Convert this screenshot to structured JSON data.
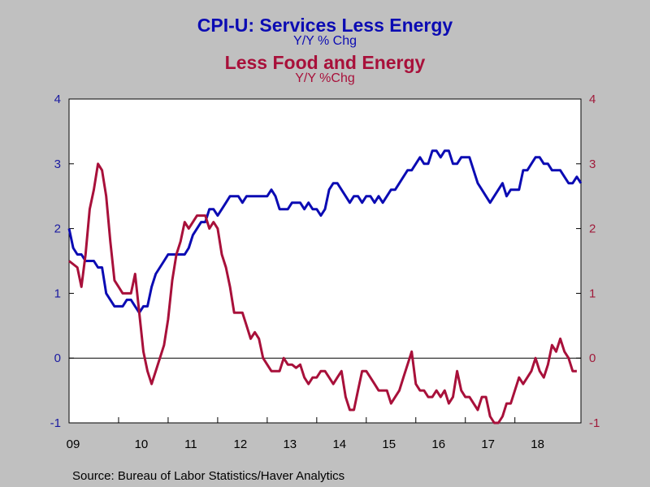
{
  "chart_data": {
    "type": "line",
    "title": "CPI-U: Services Less Energy",
    "title_subtitle": "Y/Y % Chg",
    "title2": "Less Food and Energy",
    "title2_subtitle": "Y/Y %Chg",
    "source": "Source:  Bureau of Labor Statistics/Haver Analytics",
    "x_tick_labels": [
      "09",
      "10",
      "11",
      "12",
      "13",
      "14",
      "15",
      "16",
      "17",
      "18"
    ],
    "x_start": "2009-01",
    "y_left": {
      "min": -1,
      "max": 4,
      "ticks": [
        -1,
        0,
        1,
        2,
        3,
        4
      ],
      "tick_labels": [
        "-1",
        "0",
        "1",
        "2",
        "3",
        "4"
      ],
      "color": "#1a1aa0"
    },
    "y_right": {
      "min": -1,
      "max": 4,
      "ticks": [
        -1,
        0,
        1,
        2,
        3,
        4
      ],
      "tick_labels": [
        "-1",
        "0",
        "1",
        "2",
        "3",
        "4"
      ],
      "color": "#a01a3a"
    },
    "grid": false,
    "zero_line": true,
    "series": [
      {
        "name": "CPI-U: Services Less Energy",
        "axis": "left",
        "color": "#0b0bb3",
        "values": [
          2.0,
          1.7,
          1.6,
          1.6,
          1.5,
          1.5,
          1.5,
          1.4,
          1.4,
          1.0,
          0.9,
          0.8,
          0.8,
          0.8,
          0.9,
          0.9,
          0.8,
          0.7,
          0.8,
          0.8,
          1.1,
          1.3,
          1.4,
          1.5,
          1.6,
          1.6,
          1.6,
          1.6,
          1.6,
          1.7,
          1.9,
          2.0,
          2.1,
          2.1,
          2.3,
          2.3,
          2.2,
          2.3,
          2.4,
          2.5,
          2.5,
          2.5,
          2.4,
          2.5,
          2.5,
          2.5,
          2.5,
          2.5,
          2.5,
          2.6,
          2.5,
          2.3,
          2.3,
          2.3,
          2.4,
          2.4,
          2.4,
          2.3,
          2.4,
          2.3,
          2.3,
          2.2,
          2.3,
          2.6,
          2.7,
          2.7,
          2.6,
          2.5,
          2.4,
          2.5,
          2.5,
          2.4,
          2.5,
          2.5,
          2.4,
          2.5,
          2.4,
          2.5,
          2.6,
          2.6,
          2.7,
          2.8,
          2.9,
          2.9,
          3.0,
          3.1,
          3.0,
          3.0,
          3.2,
          3.2,
          3.1,
          3.2,
          3.2,
          3.0,
          3.0,
          3.1,
          3.1,
          3.1,
          2.9,
          2.7,
          2.6,
          2.5,
          2.4,
          2.5,
          2.6,
          2.7,
          2.5,
          2.6,
          2.6,
          2.6,
          2.9,
          2.9,
          3.0,
          3.1,
          3.1,
          3.0,
          3.0,
          2.9,
          2.9,
          2.9,
          2.8,
          2.7,
          2.7,
          2.8,
          2.7
        ]
      },
      {
        "name": "Less Food and Energy",
        "axis": "right",
        "color": "#a8103a",
        "values": [
          1.5,
          1.45,
          1.4,
          1.1,
          1.6,
          2.3,
          2.6,
          3.0,
          2.9,
          2.5,
          1.8,
          1.2,
          1.1,
          1.0,
          1.0,
          1.0,
          1.3,
          0.7,
          0.1,
          -0.2,
          -0.4,
          -0.2,
          0.0,
          0.2,
          0.6,
          1.2,
          1.6,
          1.8,
          2.1,
          2.0,
          2.1,
          2.2,
          2.2,
          2.2,
          2.0,
          2.1,
          2.0,
          1.6,
          1.4,
          1.1,
          0.7,
          0.7,
          0.7,
          0.5,
          0.3,
          0.4,
          0.3,
          0.0,
          -0.1,
          -0.2,
          -0.2,
          -0.2,
          0.0,
          -0.1,
          -0.1,
          -0.15,
          -0.1,
          -0.3,
          -0.4,
          -0.3,
          -0.3,
          -0.2,
          -0.2,
          -0.3,
          -0.4,
          -0.3,
          -0.2,
          -0.6,
          -0.8,
          -0.8,
          -0.5,
          -0.2,
          -0.2,
          -0.3,
          -0.4,
          -0.5,
          -0.5,
          -0.5,
          -0.7,
          -0.6,
          -0.5,
          -0.3,
          -0.1,
          0.1,
          -0.4,
          -0.5,
          -0.5,
          -0.6,
          -0.6,
          -0.5,
          -0.6,
          -0.5,
          -0.7,
          -0.6,
          -0.2,
          -0.5,
          -0.6,
          -0.6,
          -0.7,
          -0.8,
          -0.6,
          -0.6,
          -0.9,
          -1.0,
          -1.0,
          -0.9,
          -0.7,
          -0.7,
          -0.5,
          -0.3,
          -0.4,
          -0.3,
          -0.2,
          0.0,
          -0.2,
          -0.3,
          -0.1,
          0.2,
          0.1,
          0.3,
          0.1,
          0.0,
          -0.2,
          -0.2
        ]
      }
    ]
  }
}
